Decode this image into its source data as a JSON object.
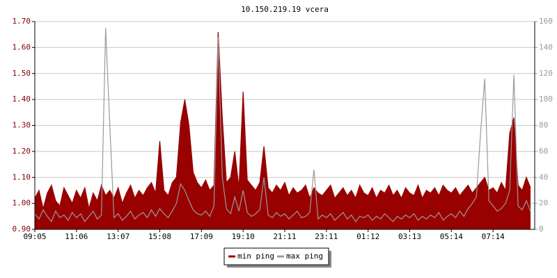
{
  "chart_data": {
    "type": "line",
    "title": "10.150.219.19 vcera",
    "categories": [
      "09:05",
      null,
      null,
      null,
      null,
      null,
      null,
      null,
      null,
      null,
      "11:06",
      null,
      null,
      null,
      null,
      null,
      null,
      null,
      null,
      null,
      "13:07",
      null,
      null,
      null,
      null,
      null,
      null,
      null,
      null,
      null,
      "15:08",
      null,
      null,
      null,
      null,
      null,
      null,
      null,
      null,
      null,
      "17:09",
      null,
      null,
      null,
      null,
      null,
      null,
      null,
      null,
      null,
      "19:10",
      null,
      null,
      null,
      null,
      null,
      null,
      null,
      null,
      null,
      "21:11",
      null,
      null,
      null,
      null,
      null,
      null,
      null,
      null,
      null,
      "23:11",
      null,
      null,
      null,
      null,
      null,
      null,
      null,
      null,
      null,
      "01:12",
      null,
      null,
      null,
      null,
      null,
      null,
      null,
      null,
      null,
      "03:13",
      null,
      null,
      null,
      null,
      null,
      null,
      null,
      null,
      null,
      "05:14",
      null,
      null,
      null,
      null,
      null,
      null,
      null,
      null,
      null,
      "07:14",
      null,
      null,
      null,
      null,
      null,
      null,
      null,
      null,
      null
    ],
    "series": [
      {
        "name": "min ping",
        "color": "#990000",
        "fill": true,
        "values": [
          1.02,
          1.05,
          0.98,
          1.04,
          1.07,
          1.01,
          0.99,
          1.06,
          1.03,
          1.0,
          1.05,
          1.02,
          1.06,
          0.98,
          1.04,
          1.01,
          1.07,
          1.03,
          1.05,
          1.02,
          1.06,
          1.0,
          1.04,
          1.07,
          1.02,
          1.05,
          1.03,
          1.06,
          1.08,
          1.04,
          1.24,
          1.05,
          1.03,
          1.08,
          1.1,
          1.31,
          1.4,
          1.3,
          1.12,
          1.08,
          1.06,
          1.09,
          1.05,
          1.07,
          1.66,
          1.33,
          1.08,
          1.1,
          1.2,
          1.06,
          1.43,
          1.09,
          1.07,
          1.05,
          1.08,
          1.22,
          1.06,
          1.04,
          1.07,
          1.05,
          1.08,
          1.03,
          1.06,
          1.04,
          1.05,
          1.07,
          1.02,
          1.06,
          1.04,
          1.03,
          1.05,
          1.07,
          1.02,
          1.04,
          1.06,
          1.03,
          1.05,
          1.02,
          1.07,
          1.04,
          1.03,
          1.06,
          1.02,
          1.05,
          1.04,
          1.07,
          1.03,
          1.05,
          1.02,
          1.06,
          1.04,
          1.03,
          1.07,
          1.02,
          1.05,
          1.04,
          1.06,
          1.03,
          1.07,
          1.05,
          1.04,
          1.06,
          1.03,
          1.05,
          1.07,
          1.04,
          1.06,
          1.08,
          1.1,
          1.05,
          1.06,
          1.04,
          1.08,
          1.05,
          1.27,
          1.33,
          1.07,
          1.05,
          1.1,
          1.06
        ]
      },
      {
        "name": "max ping",
        "color": "#999999",
        "fill": false,
        "axis": "y2",
        "values": [
          12,
          8,
          15,
          10,
          6,
          14,
          9,
          11,
          7,
          13,
          9,
          12,
          6,
          10,
          14,
          8,
          11,
          155,
          80,
          9,
          12,
          7,
          10,
          14,
          8,
          11,
          13,
          9,
          15,
          10,
          16,
          12,
          9,
          14,
          20,
          35,
          30,
          22,
          15,
          12,
          11,
          14,
          10,
          18,
          148,
          40,
          16,
          12,
          25,
          14,
          30,
          13,
          10,
          12,
          15,
          40,
          11,
          9,
          13,
          10,
          12,
          8,
          11,
          14,
          9,
          10,
          13,
          46,
          8,
          11,
          9,
          12,
          7,
          10,
          13,
          8,
          11,
          6,
          10,
          9,
          11,
          7,
          10,
          8,
          12,
          9,
          6,
          10,
          8,
          11,
          9,
          12,
          7,
          10,
          8,
          11,
          9,
          13,
          7,
          10,
          12,
          9,
          14,
          10,
          16,
          20,
          25,
          74,
          116,
          22,
          18,
          14,
          16,
          20,
          30,
          119,
          18,
          15,
          22,
          14
        ]
      }
    ],
    "ylim": [
      0.9,
      1.7
    ],
    "yticks": [
      {
        "value": 0.9,
        "label": "0.90"
      },
      {
        "value": 1.0,
        "label": "1.00"
      },
      {
        "value": 1.1,
        "label": "1.10"
      },
      {
        "value": 1.2,
        "label": "1.20"
      },
      {
        "value": 1.3,
        "label": "1.30"
      },
      {
        "value": 1.4,
        "label": "1.40"
      },
      {
        "value": 1.5,
        "label": "1.50"
      },
      {
        "value": 1.6,
        "label": "1.60"
      },
      {
        "value": 1.7,
        "label": "1.70"
      }
    ],
    "y2lim": [
      0,
      160
    ],
    "y2ticks": [
      0,
      20,
      40,
      60,
      80,
      100,
      120,
      140,
      160
    ],
    "grid": true,
    "legend": "bottom"
  }
}
